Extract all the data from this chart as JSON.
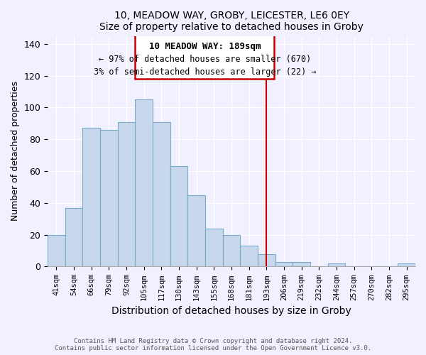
{
  "title": "10, MEADOW WAY, GROBY, LEICESTER, LE6 0EY",
  "subtitle": "Size of property relative to detached houses in Groby",
  "xlabel": "Distribution of detached houses by size in Groby",
  "ylabel": "Number of detached properties",
  "categories": [
    "41sqm",
    "54sqm",
    "66sqm",
    "79sqm",
    "92sqm",
    "105sqm",
    "117sqm",
    "130sqm",
    "143sqm",
    "155sqm",
    "168sqm",
    "181sqm",
    "193sqm",
    "206sqm",
    "219sqm",
    "232sqm",
    "244sqm",
    "257sqm",
    "270sqm",
    "282sqm",
    "295sqm"
  ],
  "values": [
    20,
    37,
    87,
    86,
    91,
    105,
    91,
    63,
    45,
    24,
    20,
    13,
    8,
    3,
    3,
    0,
    2,
    0,
    0,
    0,
    2
  ],
  "bar_color": "#c8d8ec",
  "bar_edge_color": "#7aaac8",
  "annotation_title": "10 MEADOW WAY: 189sqm",
  "annotation_line1": "← 97% of detached houses are smaller (670)",
  "annotation_line2": "3% of semi-detached houses are larger (22) →",
  "vline_color": "#cc0000",
  "ylim": [
    0,
    145
  ],
  "yticks": [
    0,
    20,
    40,
    60,
    80,
    100,
    120,
    140
  ],
  "bg_color": "#f0f0ff",
  "grid_color": "#ffffff",
  "footer_line1": "Contains HM Land Registry data © Crown copyright and database right 2024.",
  "footer_line2": "Contains public sector information licensed under the Open Government Licence v3.0."
}
